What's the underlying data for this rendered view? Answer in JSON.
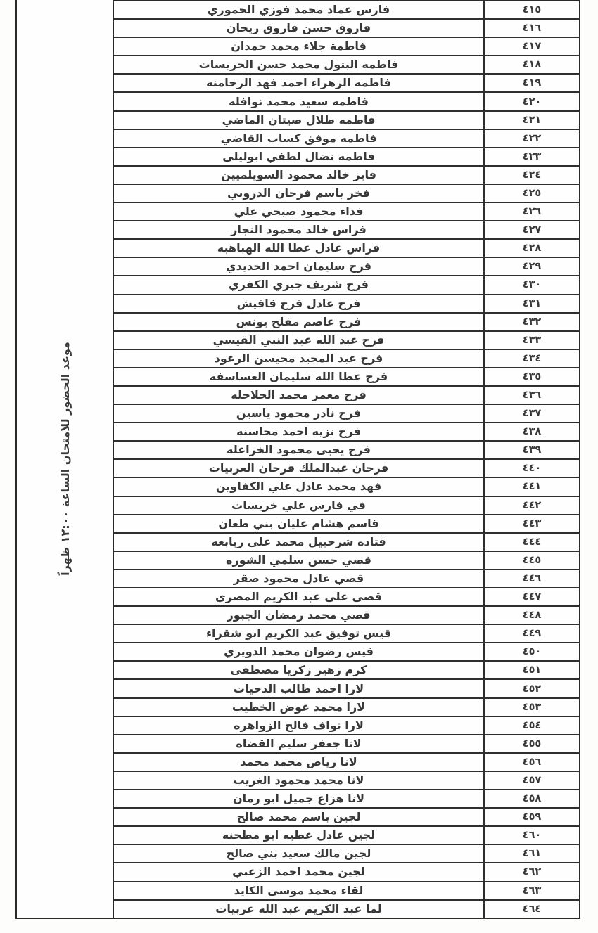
{
  "table": {
    "note": "موعد الحضور للامتحان الساعة ١٢:٠٠ ظهراً",
    "rows": [
      {
        "number": "٤١٥",
        "name": "فارس عماد محمد فوزي الحموري"
      },
      {
        "number": "٤١٦",
        "name": "فاروق حسن فاروق ريحان"
      },
      {
        "number": "٤١٧",
        "name": "فاطمة جلاء محمد حمدان"
      },
      {
        "number": "٤١٨",
        "name": "فاطمه البتول محمد حسن الخريسات"
      },
      {
        "number": "٤١٩",
        "name": "فاطمه الزهراء احمد فهد الرحامنه"
      },
      {
        "number": "٤٢٠",
        "name": "فاطمه سعيد محمد نوافله"
      },
      {
        "number": "٤٢١",
        "name": "فاطمه طلال صيتان الماضي"
      },
      {
        "number": "٤٢٢",
        "name": "فاطمه موفق كساب القاضي"
      },
      {
        "number": "٤٢٣",
        "name": "فاطمه نضال لطفي ابوليلى"
      },
      {
        "number": "٤٢٤",
        "name": "فايز خالد محمود السويلميين"
      },
      {
        "number": "٤٢٥",
        "name": "فخر باسم فرحان الدروبي"
      },
      {
        "number": "٤٢٦",
        "name": "فداء محمود صبحي علي"
      },
      {
        "number": "٤٢٧",
        "name": "فراس خالد محمود النجار"
      },
      {
        "number": "٤٢٨",
        "name": "فراس عادل عطا الله الهباهبه"
      },
      {
        "number": "٤٢٩",
        "name": "فرح سليمان احمد الحديدي"
      },
      {
        "number": "٤٣٠",
        "name": "فرح شريف جبري الكفري"
      },
      {
        "number": "٤٣١",
        "name": "فرح عادل فرح قاقيش"
      },
      {
        "number": "٤٣٢",
        "name": "فرح عاصم مفلح يونس"
      },
      {
        "number": "٤٣٣",
        "name": "فرح عبد الله عبد النبي القيسي"
      },
      {
        "number": "٤٣٤",
        "name": "فرح عبد المجيد محيسن الرعود"
      },
      {
        "number": "٤٣٥",
        "name": "فرح عطا الله سليمان العساسفه"
      },
      {
        "number": "٤٣٦",
        "name": "فرح معمر محمد الحلاحله"
      },
      {
        "number": "٤٣٧",
        "name": "فرح نادر محمود ياسين"
      },
      {
        "number": "٤٣٨",
        "name": "فرح نزيه احمد محاسنه"
      },
      {
        "number": "٤٣٩",
        "name": "فرح يحيى محمود الخزاعله"
      },
      {
        "number": "٤٤٠",
        "name": "فرحان عبدالملك فرحان العربيات"
      },
      {
        "number": "٤٤١",
        "name": "فهد محمد عادل علي الكفاوين"
      },
      {
        "number": "٤٤٢",
        "name": "في فارس علي خريسات"
      },
      {
        "number": "٤٤٣",
        "name": "قاسم هشام عليان بني طعان"
      },
      {
        "number": "٤٤٤",
        "name": "قتاده شرحبيل محمد علي ربابعه"
      },
      {
        "number": "٤٤٥",
        "name": "قصي حسن سلمي الشوره"
      },
      {
        "number": "٤٤٦",
        "name": "قصي عادل محمود صقر"
      },
      {
        "number": "٤٤٧",
        "name": "قصي علي عبد الكريم المصري"
      },
      {
        "number": "٤٤٨",
        "name": "قصي محمد رمضان الجبور"
      },
      {
        "number": "٤٤٩",
        "name": "قيس توفيق عبد الكريم ابو شقراء"
      },
      {
        "number": "٤٥٠",
        "name": "قيس رضوان محمد الدويري"
      },
      {
        "number": "٤٥١",
        "name": "كرم زهير زكريا مصطفى"
      },
      {
        "number": "٤٥٢",
        "name": "لارا احمد طالب الدحيات"
      },
      {
        "number": "٤٥٣",
        "name": "لارا محمد عوض الخطيب"
      },
      {
        "number": "٤٥٤",
        "name": "لارا نواف فالح الزواهره"
      },
      {
        "number": "٤٥٥",
        "name": "لانا جعفر سليم القضاه"
      },
      {
        "number": "٤٥٦",
        "name": "لانا رياض محمد محمد"
      },
      {
        "number": "٤٥٧",
        "name": "لانا محمد محمود الغريب"
      },
      {
        "number": "٤٥٨",
        "name": "لانا هزاع جميل ابو رمان"
      },
      {
        "number": "٤٥٩",
        "name": "لجين باسم محمد صالح"
      },
      {
        "number": "٤٦٠",
        "name": "لجين عادل عطيه ابو مطحنه"
      },
      {
        "number": "٤٦١",
        "name": "لجين مالك سعيد بني صالح"
      },
      {
        "number": "٤٦٢",
        "name": "لجين محمد احمد الزعبي"
      },
      {
        "number": "٤٦٣",
        "name": "لقاء محمد موسى الكايد"
      },
      {
        "number": "٤٦٤",
        "name": "لما عبد الكريم عبد الله عربيات"
      }
    ]
  }
}
